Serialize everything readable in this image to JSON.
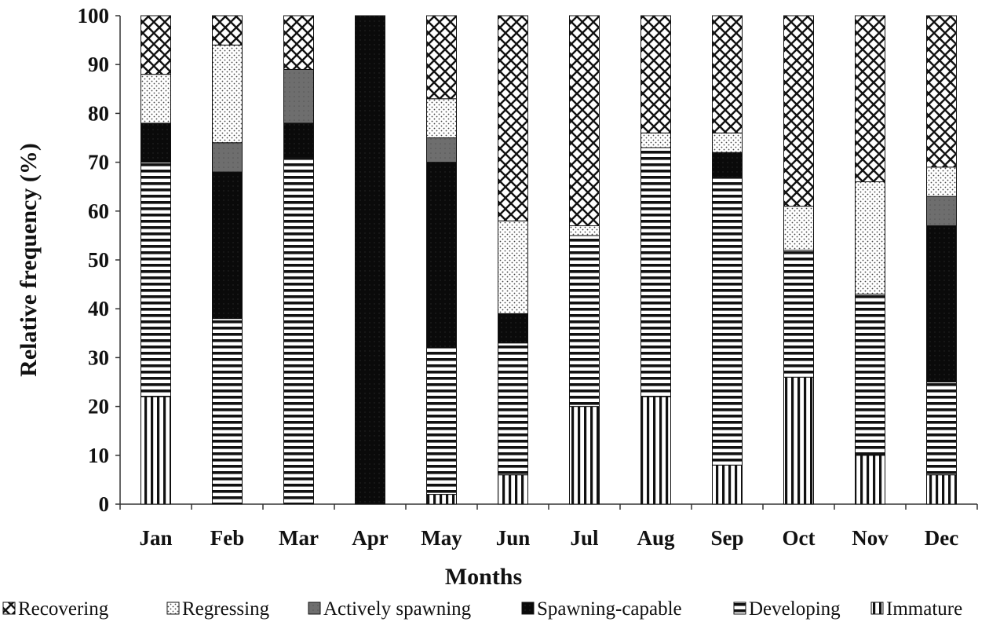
{
  "chart_data": {
    "type": "bar",
    "stacked": true,
    "title": "",
    "xlabel": "Months",
    "ylabel": "Relative frequency (%)",
    "ylim": [
      0,
      100
    ],
    "yticks": [
      0,
      10,
      20,
      30,
      40,
      50,
      60,
      70,
      80,
      90,
      100
    ],
    "grid": false,
    "legend_position": "bottom",
    "categories": [
      "Jan",
      "Feb",
      "Mar",
      "Apr",
      "May",
      "Jun",
      "Jul",
      "Aug",
      "Sep",
      "Oct",
      "Nov",
      "Dec"
    ],
    "series": [
      {
        "name": "Immature",
        "pattern": "vertical-lines",
        "values": [
          22,
          0,
          0,
          0,
          2,
          6,
          20,
          22,
          8,
          26,
          10,
          6
        ]
      },
      {
        "name": "Developing",
        "pattern": "horizontal-lines",
        "values": [
          48,
          38,
          71,
          0,
          30,
          27,
          35,
          51,
          59,
          26,
          33,
          19
        ]
      },
      {
        "name": "Spawning-capable",
        "pattern": "solid-black",
        "values": [
          8,
          30,
          7,
          100,
          38,
          6,
          0,
          0,
          5,
          0,
          0,
          32
        ]
      },
      {
        "name": "Actively spawning",
        "pattern": "dark-gray",
        "values": [
          0,
          6,
          11,
          0,
          5,
          0,
          0,
          0,
          0,
          0,
          0,
          6
        ]
      },
      {
        "name": "Regressing",
        "pattern": "dotted",
        "values": [
          10,
          20,
          0,
          0,
          8,
          19,
          2,
          3,
          4,
          9,
          23,
          6
        ]
      },
      {
        "name": "Recovering",
        "pattern": "crosshatch",
        "values": [
          12,
          6,
          11,
          0,
          17,
          42,
          43,
          24,
          24,
          39,
          34,
          31
        ]
      }
    ],
    "legend_order": [
      "Recovering",
      "Regressing",
      "Actively spawning",
      "Spawning-capable",
      "Developing",
      "Immature"
    ],
    "colors": {
      "ink": "#111111",
      "dark_gray": "#6e6e6e",
      "background": "#ffffff"
    }
  }
}
